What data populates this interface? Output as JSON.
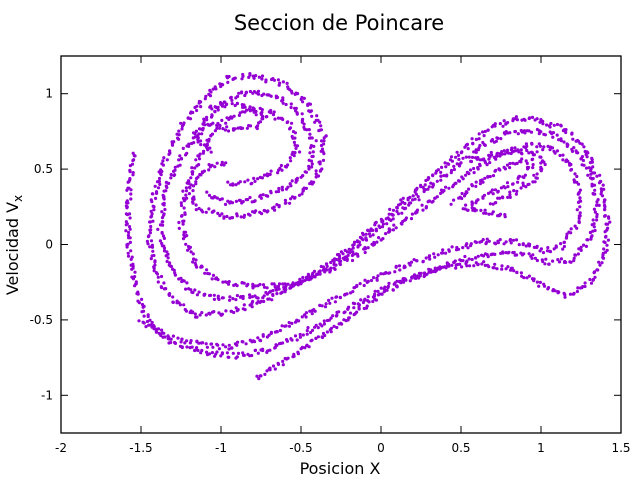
{
  "chart_data": {
    "type": "scatter",
    "title": "Seccion de Poincare",
    "xlabel": "Posicion X",
    "ylabel_main": "Velocidad V",
    "ylabel_sub": "x",
    "xlim": [
      -2,
      1.5
    ],
    "ylim": [
      -1.25,
      1.25
    ],
    "xticks": [
      "-2",
      "-1.5",
      "-1",
      "-0.5",
      "0",
      "0.5",
      "1",
      "1.5"
    ],
    "xtick_values": [
      -2,
      -1.5,
      -1,
      -0.5,
      0,
      0.5,
      1,
      1.5
    ],
    "yticks": [
      "1",
      "0.5",
      "0",
      "-0.5",
      "-1"
    ],
    "ytick_values": [
      1,
      0.5,
      0,
      -0.5,
      -1
    ],
    "grid": false,
    "legend": "none",
    "color": "#9400d3",
    "series": [
      {
        "curves": [
          [
            [
              -0.78,
              -0.88
            ],
            [
              -0.6,
              -0.77
            ],
            [
              -0.4,
              -0.63
            ],
            [
              -0.2,
              -0.48
            ],
            [
              0.0,
              -0.33
            ],
            [
              0.2,
              -0.22
            ],
            [
              0.4,
              -0.15
            ],
            [
              0.6,
              -0.12
            ],
            [
              0.8,
              -0.16
            ],
            [
              1.0,
              -0.26
            ],
            [
              1.15,
              -0.34
            ],
            [
              1.3,
              -0.26
            ],
            [
              1.4,
              -0.08
            ],
            [
              1.42,
              0.12
            ],
            [
              1.38,
              0.38
            ],
            [
              1.28,
              0.62
            ],
            [
              1.15,
              0.76
            ],
            [
              1.0,
              0.82
            ],
            [
              0.85,
              0.84
            ],
            [
              0.7,
              0.78
            ],
            [
              0.55,
              0.67
            ],
            [
              0.4,
              0.53
            ],
            [
              0.2,
              0.34
            ],
            [
              0.0,
              0.16
            ],
            [
              -0.2,
              -0.03
            ],
            [
              -0.45,
              -0.22
            ],
            [
              -0.7,
              -0.36
            ],
            [
              -0.95,
              -0.45
            ],
            [
              -1.15,
              -0.47
            ],
            [
              -1.3,
              -0.38
            ],
            [
              -1.4,
              -0.2
            ],
            [
              -1.45,
              0.05
            ],
            [
              -1.42,
              0.32
            ],
            [
              -1.35,
              0.55
            ],
            [
              -1.25,
              0.78
            ],
            [
              -1.1,
              0.98
            ],
            [
              -0.95,
              1.1
            ],
            [
              -0.8,
              1.12
            ],
            [
              -0.6,
              1.06
            ],
            [
              -0.45,
              0.92
            ],
            [
              -0.35,
              0.72
            ],
            [
              -0.38,
              0.5
            ],
            [
              -0.5,
              0.33
            ],
            [
              -0.7,
              0.22
            ],
            [
              -0.95,
              0.18
            ],
            [
              -1.15,
              0.24
            ],
            [
              -1.2,
              0.38
            ],
            [
              -1.1,
              0.5
            ],
            [
              -0.95,
              0.55
            ]
          ],
          [
            [
              -1.55,
              0.6
            ],
            [
              -1.58,
              0.3
            ],
            [
              -1.58,
              0.0
            ],
            [
              -1.53,
              -0.3
            ],
            [
              -1.45,
              -0.52
            ],
            [
              -1.3,
              -0.65
            ],
            [
              -1.1,
              -0.72
            ],
            [
              -0.9,
              -0.74
            ],
            [
              -0.7,
              -0.7
            ],
            [
              -0.5,
              -0.6
            ],
            [
              -0.3,
              -0.48
            ],
            [
              -0.1,
              -0.36
            ],
            [
              0.1,
              -0.25
            ],
            [
              0.3,
              -0.18
            ],
            [
              0.5,
              -0.1
            ],
            [
              0.7,
              -0.06
            ],
            [
              0.9,
              -0.07
            ],
            [
              1.05,
              -0.12
            ],
            [
              1.2,
              -0.1
            ],
            [
              1.32,
              0.05
            ],
            [
              1.35,
              0.25
            ],
            [
              1.32,
              0.45
            ],
            [
              1.22,
              0.62
            ],
            [
              1.1,
              0.72
            ],
            [
              0.95,
              0.76
            ],
            [
              0.8,
              0.74
            ],
            [
              0.65,
              0.66
            ],
            [
              0.5,
              0.55
            ],
            [
              0.35,
              0.42
            ],
            [
              0.15,
              0.25
            ],
            [
              -0.05,
              0.08
            ],
            [
              -0.25,
              -0.1
            ],
            [
              -0.5,
              -0.26
            ],
            [
              -0.75,
              -0.34
            ],
            [
              -1.0,
              -0.36
            ],
            [
              -1.2,
              -0.3
            ],
            [
              -1.33,
              -0.12
            ],
            [
              -1.38,
              0.1
            ],
            [
              -1.35,
              0.35
            ],
            [
              -1.25,
              0.58
            ],
            [
              -1.12,
              0.8
            ],
            [
              -0.98,
              0.95
            ],
            [
              -0.82,
              1.02
            ],
            [
              -0.65,
              0.98
            ],
            [
              -0.5,
              0.85
            ],
            [
              -0.42,
              0.68
            ],
            [
              -0.45,
              0.5
            ],
            [
              -0.58,
              0.38
            ],
            [
              -0.78,
              0.3
            ],
            [
              -0.98,
              0.28
            ],
            [
              -1.1,
              0.34
            ]
          ],
          [
            [
              -1.5,
              -0.5
            ],
            [
              -1.35,
              -0.6
            ],
            [
              -1.15,
              -0.66
            ],
            [
              -0.95,
              -0.68
            ],
            [
              -0.75,
              -0.62
            ],
            [
              -0.55,
              -0.52
            ],
            [
              -0.35,
              -0.4
            ],
            [
              -0.15,
              -0.28
            ],
            [
              0.05,
              -0.18
            ],
            [
              0.25,
              -0.1
            ],
            [
              0.45,
              -0.03
            ],
            [
              0.65,
              0.02
            ],
            [
              0.85,
              0.02
            ],
            [
              1.0,
              -0.04
            ],
            [
              1.12,
              -0.02
            ],
            [
              1.22,
              0.12
            ],
            [
              1.25,
              0.32
            ],
            [
              1.2,
              0.5
            ],
            [
              1.1,
              0.62
            ],
            [
              0.95,
              0.66
            ],
            [
              0.8,
              0.62
            ],
            [
              0.65,
              0.54
            ],
            [
              0.5,
              0.44
            ],
            [
              0.35,
              0.32
            ],
            [
              0.15,
              0.16
            ],
            [
              -0.05,
              0.0
            ],
            [
              -0.3,
              -0.16
            ],
            [
              -0.55,
              -0.26
            ],
            [
              -0.8,
              -0.28
            ],
            [
              -1.02,
              -0.24
            ],
            [
              -1.18,
              -0.1
            ],
            [
              -1.25,
              0.12
            ],
            [
              -1.22,
              0.38
            ],
            [
              -1.12,
              0.62
            ],
            [
              -1.0,
              0.8
            ],
            [
              -0.85,
              0.9
            ],
            [
              -0.7,
              0.88
            ],
            [
              -0.56,
              0.78
            ],
            [
              -0.52,
              0.62
            ],
            [
              -0.62,
              0.5
            ],
            [
              -0.8,
              0.42
            ],
            [
              -0.98,
              0.4
            ]
          ],
          [
            [
              -1.08,
              0.9
            ],
            [
              -0.95,
              0.93
            ],
            [
              -0.8,
              0.9
            ],
            [
              -0.72,
              0.84
            ],
            [
              -0.78,
              0.78
            ],
            [
              -0.95,
              0.76
            ],
            [
              -1.08,
              0.8
            ],
            [
              -1.15,
              0.7
            ],
            [
              -1.05,
              0.6
            ]
          ],
          [
            [
              0.45,
              0.28
            ],
            [
              0.6,
              0.4
            ],
            [
              0.75,
              0.5
            ],
            [
              0.88,
              0.56
            ],
            [
              0.95,
              0.55
            ],
            [
              0.9,
              0.46
            ],
            [
              0.78,
              0.38
            ],
            [
              0.6,
              0.3
            ],
            [
              0.52,
              0.24
            ],
            [
              0.65,
              0.22
            ],
            [
              0.8,
              0.18
            ]
          ],
          [
            [
              0.55,
              0.55
            ],
            [
              0.7,
              0.6
            ],
            [
              0.85,
              0.62
            ],
            [
              0.98,
              0.6
            ],
            [
              1.02,
              0.52
            ],
            [
              0.95,
              0.42
            ],
            [
              0.82,
              0.34
            ],
            [
              0.68,
              0.26
            ]
          ]
        ]
      }
    ]
  }
}
